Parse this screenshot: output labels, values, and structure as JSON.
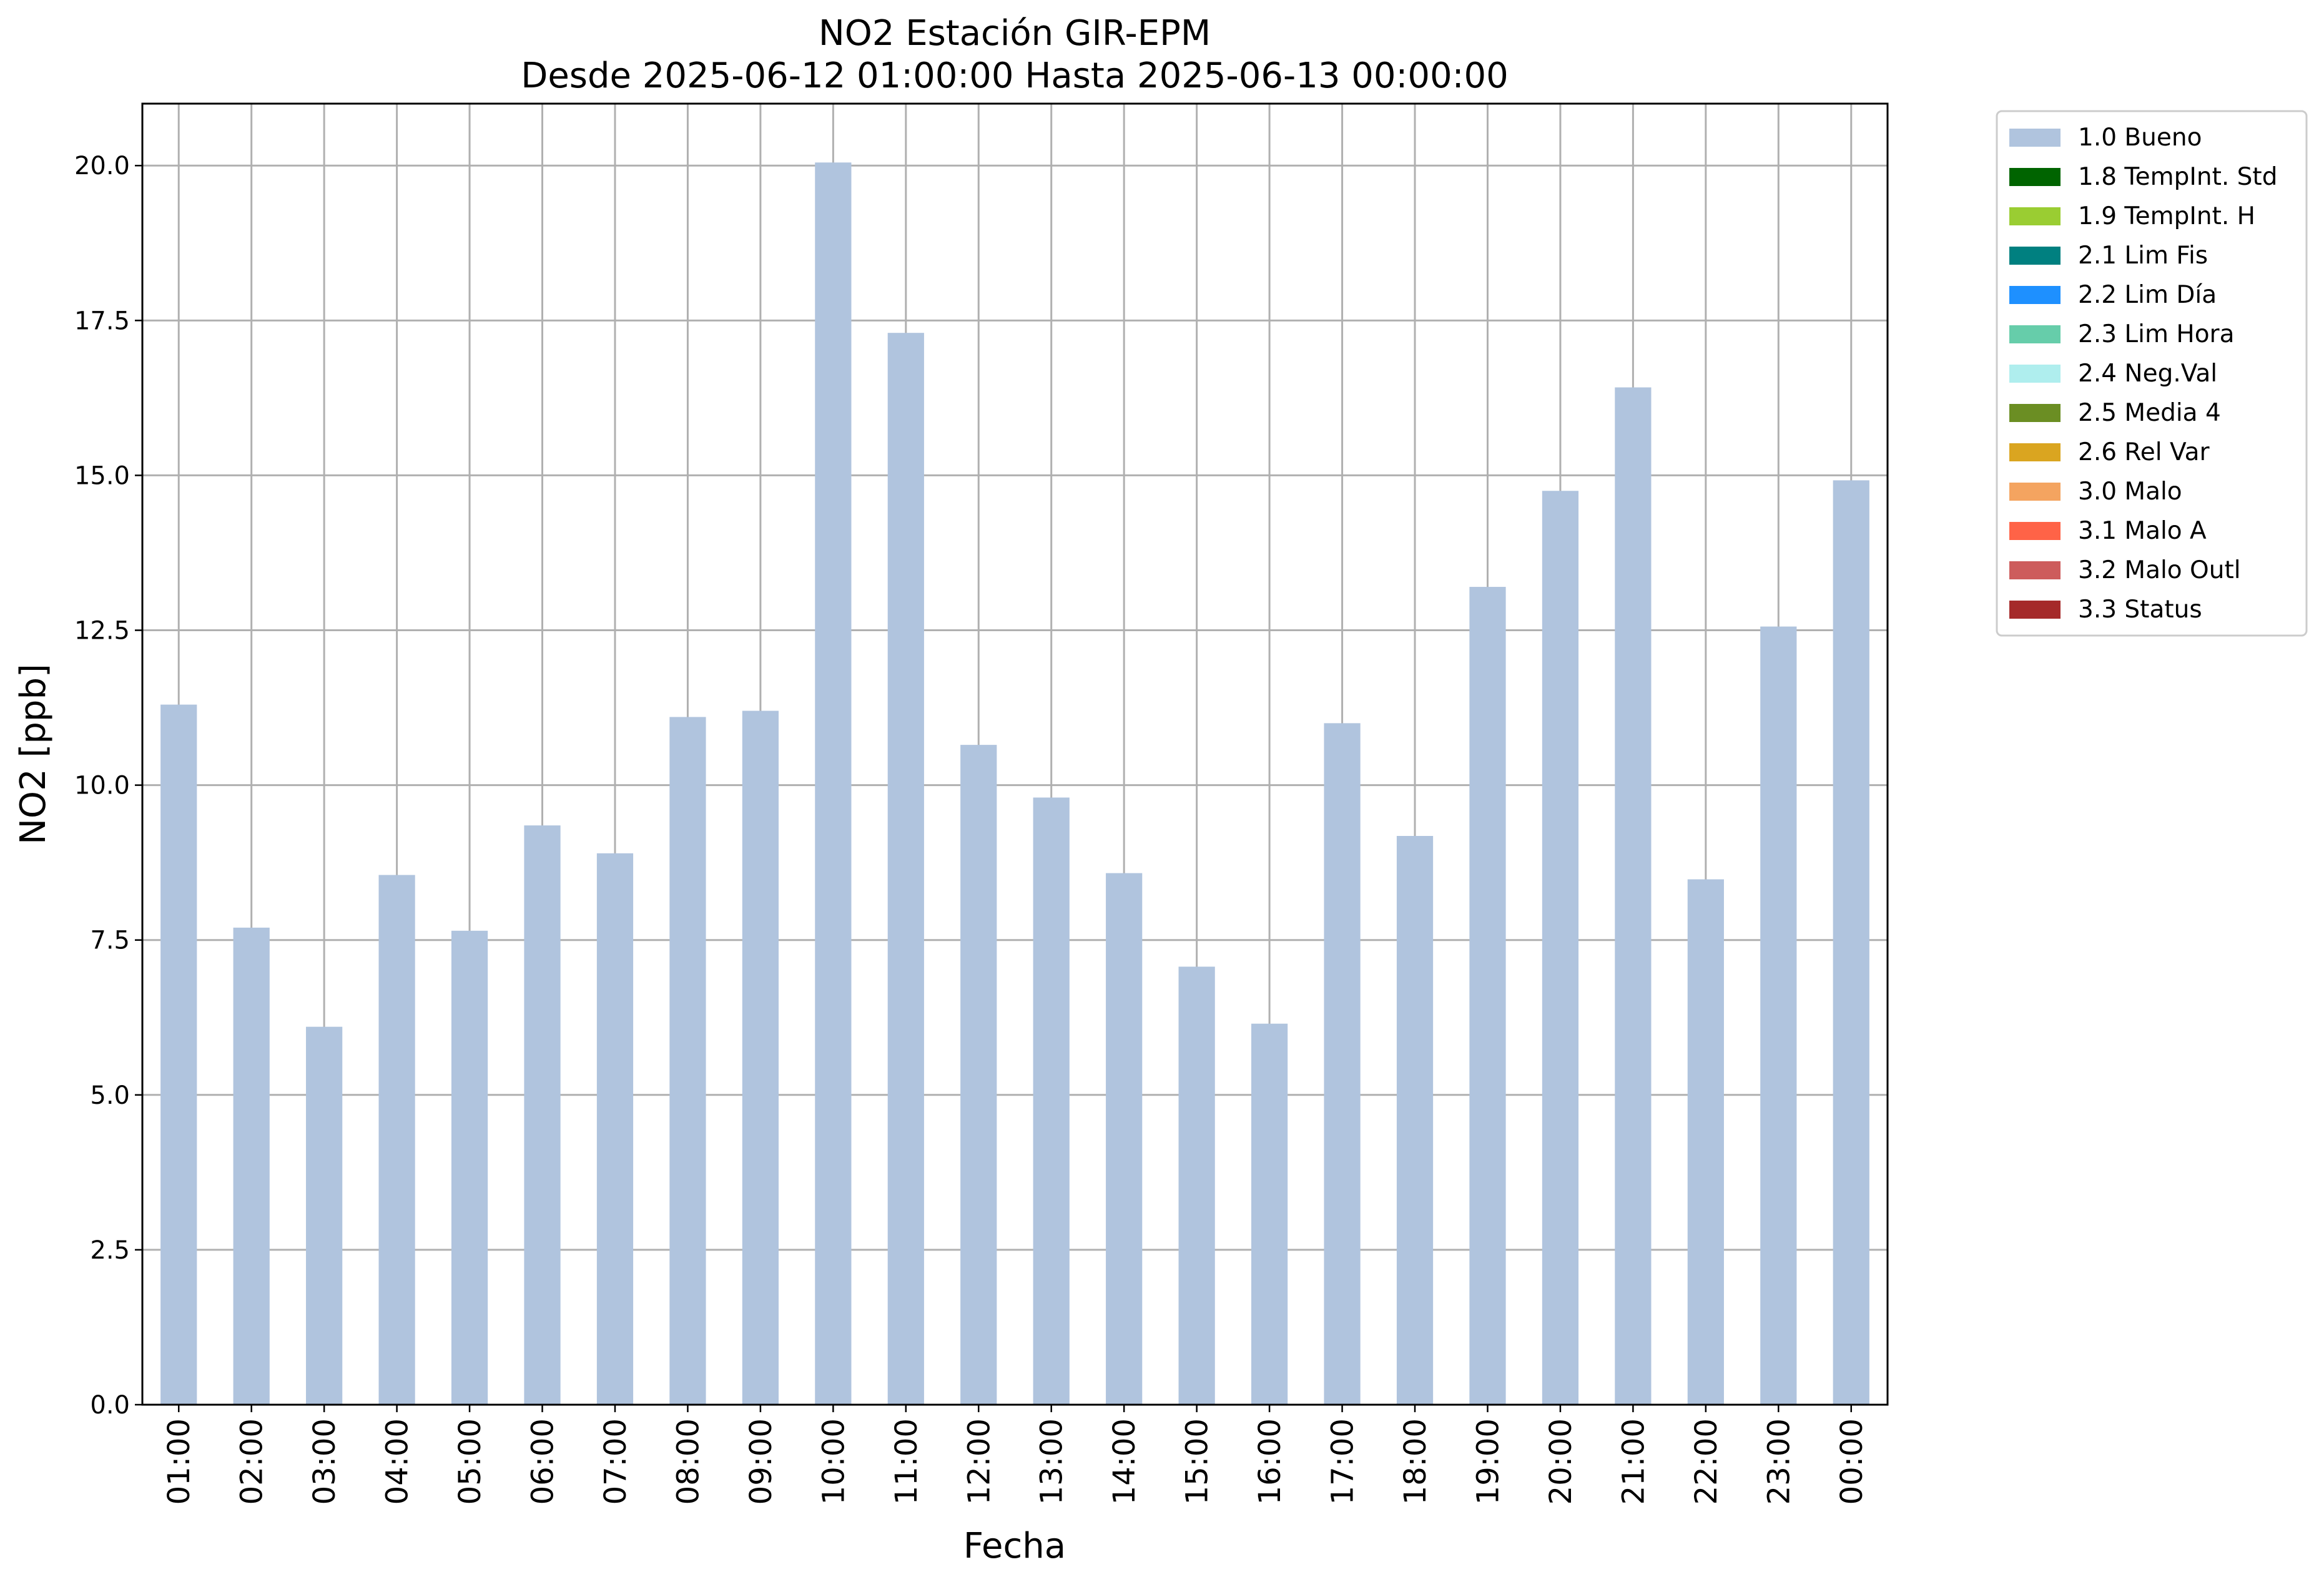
{
  "chart_data": {
    "type": "bar",
    "title": "NO2 Estación GIR-EPM",
    "subtitle": "Desde 2025-06-12 01:00:00 Hasta 2025-06-13 00:00:00",
    "xlabel": "Fecha",
    "ylabel": "NO2 [ppb]",
    "ylim": [
      0,
      21
    ],
    "yticks": [
      0.0,
      2.5,
      5.0,
      7.5,
      10.0,
      12.5,
      15.0,
      17.5,
      20.0
    ],
    "ytick_labels": [
      "0.0",
      "2.5",
      "5.0",
      "7.5",
      "10.0",
      "12.5",
      "15.0",
      "17.5",
      "20.0"
    ],
    "grid": true,
    "legend_position": "outside-top-right",
    "categories": [
      "01:00",
      "02:00",
      "03:00",
      "04:00",
      "05:00",
      "06:00",
      "07:00",
      "08:00",
      "09:00",
      "10:00",
      "11:00",
      "12:00",
      "13:00",
      "14:00",
      "15:00",
      "16:00",
      "17:00",
      "18:00",
      "19:00",
      "20:00",
      "21:00",
      "22:00",
      "23:00",
      "00:00"
    ],
    "series": [
      {
        "name": "1.0 Bueno",
        "color": "#b0c4de",
        "values": [
          11.3,
          7.7,
          6.1,
          8.55,
          7.65,
          9.35,
          8.9,
          11.1,
          11.2,
          20.05,
          17.3,
          10.65,
          9.8,
          8.58,
          7.07,
          6.15,
          11.0,
          9.18,
          13.2,
          14.75,
          16.42,
          8.48,
          12.56,
          14.92
        ]
      }
    ],
    "legend": [
      {
        "label": "1.0 Bueno",
        "color": "#b0c4de"
      },
      {
        "label": "1.8 TempInt. Std",
        "color": "#006400"
      },
      {
        "label": "1.9 TempInt. H",
        "color": "#9acd32"
      },
      {
        "label": "2.1 Lim Fis",
        "color": "#008080"
      },
      {
        "label": "2.2 Lim Día",
        "color": "#1e90ff"
      },
      {
        "label": "2.3 Lim Hora",
        "color": "#66cdaa"
      },
      {
        "label": "2.4 Neg.Val",
        "color": "#afeeee"
      },
      {
        "label": "2.5 Media 4",
        "color": "#6b8e23"
      },
      {
        "label": "2.6 Rel Var",
        "color": "#daa520"
      },
      {
        "label": "3.0 Malo",
        "color": "#f4a460"
      },
      {
        "label": "3.1 Malo A",
        "color": "#ff6347"
      },
      {
        "label": "3.2 Malo Outl",
        "color": "#cd5c5c"
      },
      {
        "label": "3.3 Status",
        "color": "#a52a2a"
      }
    ]
  }
}
